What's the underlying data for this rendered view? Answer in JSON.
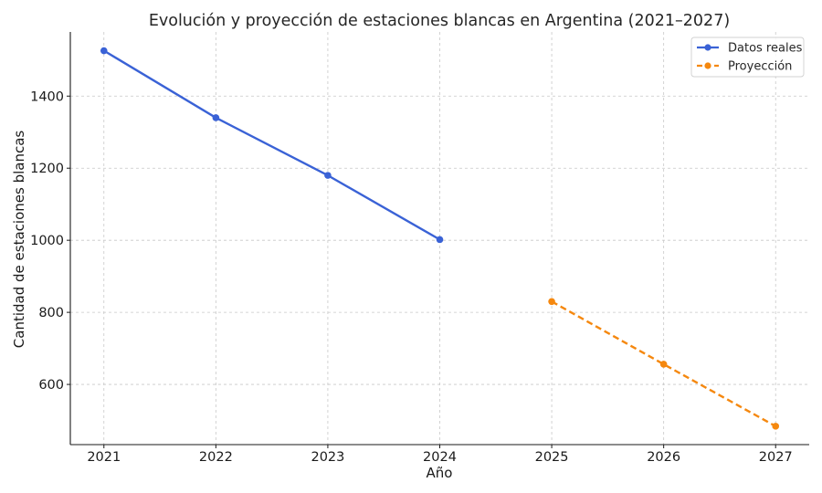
{
  "chart_data": {
    "type": "line",
    "title": "Evolución y proyección de estaciones blancas en Argentina (2021–2027)",
    "xlabel": "Año",
    "ylabel": "Cantidad de estaciones blancas",
    "xlim": [
      2020.7,
      2027.3
    ],
    "ylim": [
      433,
      1578
    ],
    "x_ticks": [
      2021,
      2022,
      2023,
      2024,
      2025,
      2026,
      2027
    ],
    "y_ticks": [
      600,
      800,
      1000,
      1200,
      1400
    ],
    "grid": true,
    "legend_position": "top-right",
    "series": [
      {
        "name": "Datos reales",
        "color": "#3a62d6",
        "line_style": "solid",
        "x": [
          2021,
          2022,
          2023,
          2024
        ],
        "y": [
          1526,
          1340,
          1180,
          1002
        ]
      },
      {
        "name": "Proyección",
        "color": "#f5880f",
        "line_style": "dashed",
        "x": [
          2025,
          2026,
          2027
        ],
        "y": [
          830,
          656,
          484
        ]
      }
    ]
  }
}
